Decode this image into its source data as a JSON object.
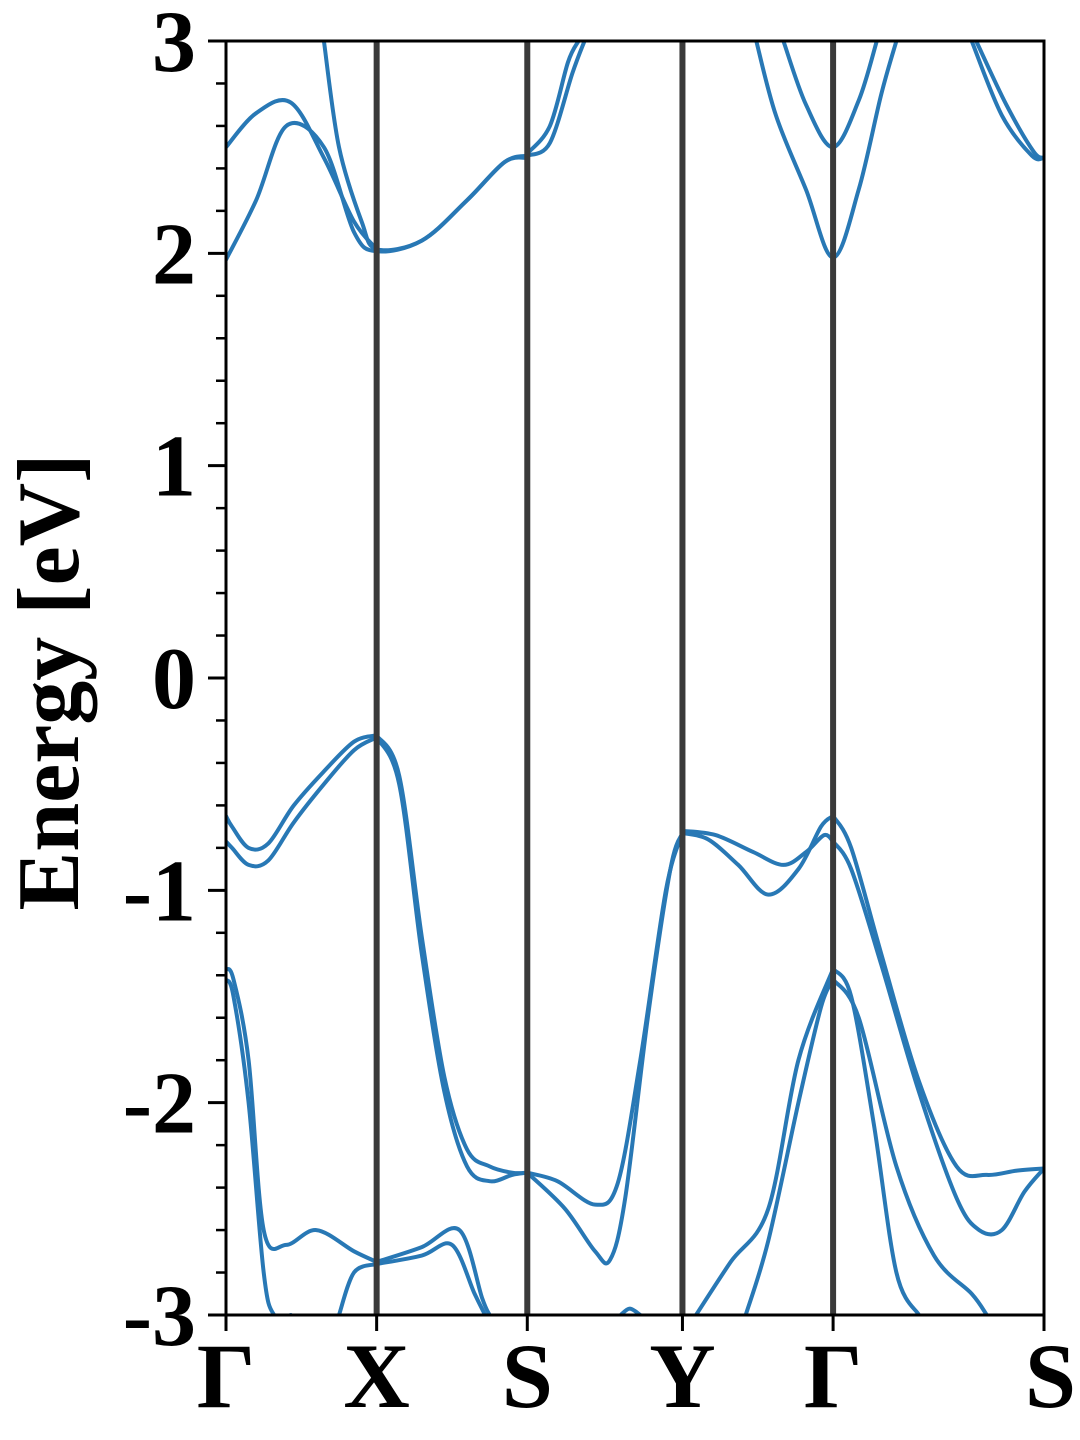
{
  "chart_data": {
    "type": "line",
    "title": "",
    "xlabel": "",
    "ylabel": "Energy [eV]",
    "ylim": [
      -3,
      3
    ],
    "xlim": [
      0,
      5.43
    ],
    "grid": false,
    "legend": "none",
    "y_ticks": [
      -3,
      -2,
      -1,
      0,
      1,
      2,
      3
    ],
    "y_tick_labels": [
      "-3",
      "-2",
      "-1",
      "0",
      "1",
      "2",
      "3"
    ],
    "y_minor_step": 0.2,
    "k_points": [
      {
        "label": "Γ",
        "x": 0.0
      },
      {
        "label": "X",
        "x": 1.0
      },
      {
        "label": "S",
        "x": 2.0
      },
      {
        "label": "Y",
        "x": 3.03
      },
      {
        "label": "Γ",
        "x": 4.03
      },
      {
        "label": "S",
        "x": 5.43
      }
    ],
    "line_color": "#2878b5",
    "vline_color": "#3a3a3a",
    "series": [
      {
        "x": [
          0,
          0.2,
          0.43,
          0.65,
          0.85,
          1.0
        ],
        "y": [
          2.5,
          2.66,
          2.71,
          2.45,
          2.15,
          2.02
        ]
      },
      {
        "x": [
          0,
          0.2,
          0.4,
          0.65,
          0.85,
          1.0,
          1.3,
          1.6,
          1.85,
          2.0
        ],
        "y": [
          1.97,
          2.25,
          2.6,
          2.5,
          2.1,
          2.01,
          2.06,
          2.25,
          2.43,
          2.45
        ]
      },
      {
        "x": [
          0.65,
          0.75,
          0.9,
          1.0,
          1.3,
          1.6,
          1.85,
          2.0
        ],
        "y": [
          3.0,
          2.5,
          2.15,
          2.02,
          2.06,
          2.25,
          2.43,
          2.46
        ]
      },
      {
        "x": [
          2.0,
          2.15,
          2.3,
          2.38
        ],
        "y": [
          2.46,
          2.52,
          2.85,
          3.0
        ]
      },
      {
        "x": [
          2.0,
          2.15,
          2.27,
          2.34
        ],
        "y": [
          2.47,
          2.6,
          2.9,
          3.0
        ]
      },
      {
        "x": [
          3.52,
          3.65,
          3.85,
          4.03,
          4.2,
          4.35,
          4.45
        ],
        "y": [
          3.0,
          2.65,
          2.3,
          1.98,
          2.3,
          2.75,
          3.0
        ]
      },
      {
        "x": [
          3.7,
          3.85,
          4.03,
          4.2,
          4.32
        ],
        "y": [
          3.0,
          2.7,
          2.5,
          2.72,
          3.0
        ]
      },
      {
        "x": [
          4.95,
          5.15,
          5.35,
          5.43
        ],
        "y": [
          3.0,
          2.65,
          2.46,
          2.45
        ]
      },
      {
        "x": [
          4.98,
          5.18,
          5.36,
          5.43
        ],
        "y": [
          3.0,
          2.7,
          2.48,
          2.45
        ]
      },
      {
        "x": [
          0,
          0.04,
          0.15,
          0.28,
          0.45,
          0.65,
          0.85,
          1.0
        ],
        "y": [
          -0.65,
          -0.7,
          -0.8,
          -0.78,
          -0.6,
          -0.44,
          -0.3,
          -0.27
        ]
      },
      {
        "x": [
          0,
          0.04,
          0.15,
          0.28,
          0.45,
          0.65,
          0.85,
          1.0
        ],
        "y": [
          -0.77,
          -0.8,
          -0.88,
          -0.86,
          -0.68,
          -0.5,
          -0.34,
          -0.28
        ]
      },
      {
        "x": [
          1.0,
          1.15,
          1.3,
          1.45,
          1.6,
          1.75,
          1.9,
          2.0
        ],
        "y": [
          -0.28,
          -0.5,
          -1.3,
          -1.95,
          -2.3,
          -2.37,
          -2.34,
          -2.33
        ]
      },
      {
        "x": [
          1.0,
          1.15,
          1.3,
          1.45,
          1.6,
          1.75,
          1.9,
          2.0
        ],
        "y": [
          -0.27,
          -0.46,
          -1.22,
          -1.88,
          -2.22,
          -2.3,
          -2.33,
          -2.33
        ]
      },
      {
        "x": [
          2.0,
          2.2,
          2.45,
          2.6,
          2.75,
          2.92,
          3.03
        ],
        "y": [
          -2.33,
          -2.37,
          -2.48,
          -2.38,
          -1.8,
          -1.0,
          -0.73
        ]
      },
      {
        "x": [
          2.0,
          2.25,
          2.45,
          2.55,
          2.65,
          2.8,
          2.95,
          3.03
        ],
        "y": [
          -2.33,
          -2.5,
          -2.7,
          -2.74,
          -2.45,
          -1.6,
          -0.9,
          -0.73
        ]
      },
      {
        "x": [
          3.03,
          3.2,
          3.4,
          3.6,
          3.8,
          3.95,
          4.03
        ],
        "y": [
          -0.73,
          -0.76,
          -0.88,
          -1.02,
          -0.9,
          -0.7,
          -0.65
        ]
      },
      {
        "x": [
          3.03,
          3.25,
          3.5,
          3.7,
          3.85,
          3.97,
          4.03
        ],
        "y": [
          -0.72,
          -0.74,
          -0.82,
          -0.88,
          -0.82,
          -0.74,
          -0.77
        ]
      },
      {
        "x": [
          4.03,
          4.15,
          4.35,
          4.6,
          4.85,
          5.05,
          5.25,
          5.43
        ],
        "y": [
          -0.65,
          -0.8,
          -1.3,
          -1.9,
          -2.3,
          -2.34,
          -2.32,
          -2.31
        ]
      },
      {
        "x": [
          4.03,
          4.15,
          4.35,
          4.6,
          4.85,
          5.0,
          5.15,
          5.3,
          5.43
        ],
        "y": [
          -0.77,
          -0.9,
          -1.35,
          -1.95,
          -2.45,
          -2.6,
          -2.6,
          -2.42,
          -2.31
        ]
      },
      {
        "x": [
          0,
          0.05,
          0.15,
          0.25,
          0.4,
          0.6,
          0.85,
          1.0
        ],
        "y": [
          -1.37,
          -1.42,
          -1.8,
          -2.6,
          -2.67,
          -2.6,
          -2.7,
          -2.75
        ]
      },
      {
        "x": [
          0,
          0.05,
          0.15,
          0.25,
          0.32,
          0.43
        ],
        "y": [
          -1.42,
          -1.5,
          -2.0,
          -2.8,
          -3.0,
          -3.0
        ]
      },
      {
        "x": [
          1.0,
          1.3,
          1.55,
          1.7,
          1.75
        ],
        "y": [
          -2.75,
          -2.68,
          -2.6,
          -2.92,
          -3.0
        ]
      },
      {
        "x": [
          1.0,
          1.3,
          1.5,
          1.65,
          1.72
        ],
        "y": [
          -2.76,
          -2.72,
          -2.67,
          -2.9,
          -3.0
        ]
      },
      {
        "x": [
          0.75,
          0.85,
          1.0
        ],
        "y": [
          -3.0,
          -2.8,
          -2.76
        ]
      },
      {
        "x": [
          3.12,
          3.35,
          3.6,
          3.8,
          4.03
        ],
        "y": [
          -3.0,
          -2.75,
          -2.5,
          -1.8,
          -1.37
        ]
      },
      {
        "x": [
          3.45,
          3.6,
          3.8,
          3.95,
          4.03
        ],
        "y": [
          -3.0,
          -2.65,
          -2.0,
          -1.55,
          -1.42
        ]
      },
      {
        "x": [
          4.03,
          4.15,
          4.3,
          4.45,
          4.6
        ],
        "y": [
          -1.37,
          -1.5,
          -2.1,
          -2.8,
          -3.0
        ]
      },
      {
        "x": [
          4.03,
          4.2,
          4.45,
          4.7,
          4.95,
          5.05
        ],
        "y": [
          -1.42,
          -1.6,
          -2.3,
          -2.72,
          -2.9,
          -3.0
        ]
      },
      {
        "x": [
          2.62,
          2.68,
          2.75
        ],
        "y": [
          -3.0,
          -2.97,
          -3.0
        ]
      }
    ]
  }
}
